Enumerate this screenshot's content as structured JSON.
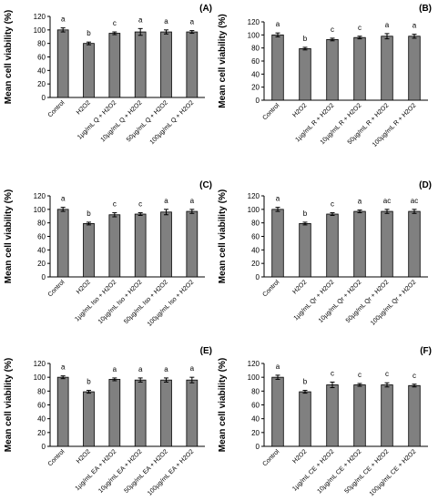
{
  "chart_data": [
    {
      "type": "bar",
      "panel_label": "(A)",
      "ylabel": "Mean cell viability (%)",
      "ylim": [
        0,
        120
      ],
      "yticks": [
        "0",
        "20",
        "40",
        "60",
        "80",
        "100",
        "120"
      ],
      "categories": [
        "Control",
        "H2O2",
        "1µg/mL Q + H2O2",
        "10µg/mL Q + H2O2",
        "50µg/mL Q + H2O2",
        "100µg/mL Q + H2O2"
      ],
      "values": [
        100,
        80,
        95,
        97,
        97,
        97
      ],
      "errors": [
        3,
        2,
        2,
        5,
        3,
        2
      ],
      "significance": [
        "a",
        "b",
        "c",
        "a",
        "a",
        "a"
      ],
      "grid": false,
      "bar_color": "#808080"
    },
    {
      "type": "bar",
      "panel_label": "(B)",
      "ylabel": "Mean cell viability (%)",
      "ylim": [
        0,
        120
      ],
      "yticks": [
        "0",
        "20",
        "40",
        "60",
        "80",
        "100",
        "120"
      ],
      "categories": [
        "Control",
        "H2O2",
        "1µg/mL R + H2O2",
        "10µg/mL R + H2O2",
        "50µg/mL R + H2O2",
        "100µg/mL R + H2O2"
      ],
      "values": [
        100,
        79,
        93,
        96,
        98,
        98
      ],
      "errors": [
        3,
        2,
        2,
        2,
        4,
        3
      ],
      "significance": [
        "a",
        "b",
        "c",
        "c",
        "a",
        "a"
      ],
      "grid": false,
      "bar_color": "#808080"
    },
    {
      "type": "bar",
      "panel_label": "(C)",
      "ylabel": "Mean cell viability (%)",
      "ylim": [
        0,
        120
      ],
      "yticks": [
        "0",
        "20",
        "40",
        "60",
        "80",
        "100",
        "120"
      ],
      "categories": [
        "Control",
        "H2O2",
        "1µg/mL Iso + H2O2",
        "10µg/mL Iso + H2O2",
        "50µg/mL Iso + H2O2",
        "100µg/mL Iso + H2O2"
      ],
      "values": [
        100,
        79,
        92,
        93,
        96,
        97
      ],
      "errors": [
        3,
        2,
        3,
        2,
        4,
        3
      ],
      "significance": [
        "a",
        "b",
        "c",
        "c",
        "a",
        "a"
      ],
      "grid": false,
      "bar_color": "#808080"
    },
    {
      "type": "bar",
      "panel_label": "(D)",
      "ylabel": "Mean cell viability (%)",
      "ylim": [
        0,
        120
      ],
      "yticks": [
        "0",
        "20",
        "40",
        "60",
        "80",
        "100",
        "120"
      ],
      "categories": [
        "Control",
        "H2O2",
        "1µg/mL Qr + H2O2",
        "10µg/mL Qr + H2O2",
        "50µg/mL Qr + H2O2",
        "100µg/mL Qr + H2O2"
      ],
      "values": [
        100,
        79,
        93,
        97,
        97,
        97
      ],
      "errors": [
        3,
        2,
        2,
        2,
        3,
        3
      ],
      "significance": [
        "a",
        "b",
        "c",
        "a",
        "ac",
        "ac"
      ],
      "grid": false,
      "bar_color": "#808080"
    },
    {
      "type": "bar",
      "panel_label": "(E)",
      "ylabel": "Mean cell viability (%)",
      "ylim": [
        0,
        120
      ],
      "yticks": [
        "0",
        "20",
        "40",
        "60",
        "80",
        "100",
        "120"
      ],
      "categories": [
        "Control",
        "H2O2",
        "1µg/mL EA + H2O2",
        "10µg/mL EA + H2O2",
        "50µg/mL EA + H2O2",
        "100µg/mL EA + H2O2"
      ],
      "values": [
        100,
        79,
        97,
        96,
        96,
        96
      ],
      "errors": [
        2,
        2,
        2,
        3,
        3,
        4
      ],
      "significance": [
        "a",
        "b",
        "a",
        "a",
        "a",
        "a"
      ],
      "grid": false,
      "bar_color": "#808080"
    },
    {
      "type": "bar",
      "panel_label": "(F)",
      "ylabel": "Mean cell viability (%)",
      "ylim": [
        0,
        120
      ],
      "yticks": [
        "0",
        "20",
        "40",
        "60",
        "80",
        "100",
        "120"
      ],
      "categories": [
        "Control",
        "H2O2",
        "1µg/mL CE + H2O2",
        "10µg/mL CE + H2O2",
        "50µg/mL CE + H2O2",
        "100µg/mL CE + H2O2"
      ],
      "values": [
        100,
        79,
        89,
        89,
        89,
        88
      ],
      "errors": [
        3,
        2,
        4,
        2,
        3,
        2
      ],
      "significance": [
        "a",
        "b",
        "c",
        "c",
        "c",
        "c"
      ],
      "grid": false,
      "bar_color": "#808080"
    }
  ]
}
